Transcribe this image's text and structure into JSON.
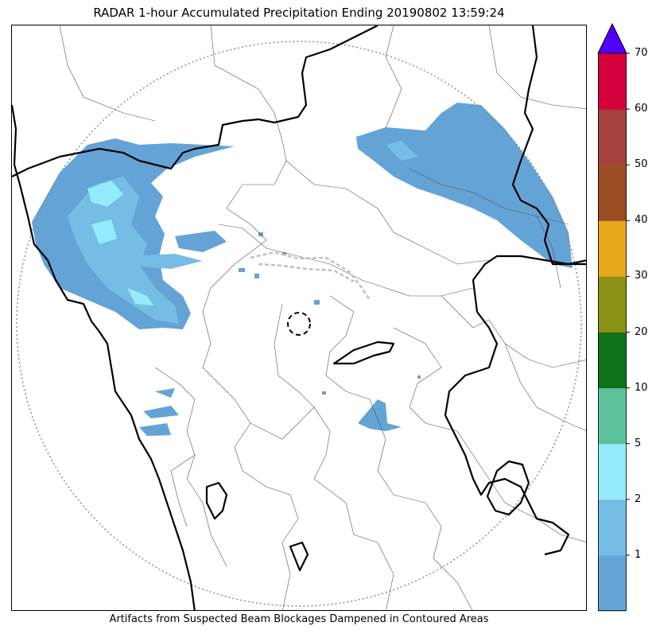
{
  "title": "RADAR 1-hour Accumulated Precipitation Ending 20190802 13:59:24",
  "footer_note": "Artifacts from Suspected Beam Blockages Dampened in Contoured Areas",
  "colorbar": {
    "tick_labels": [
      "1",
      "2",
      "5",
      "10",
      "20",
      "30",
      "40",
      "50",
      "60",
      "70"
    ],
    "colors": [
      "#64a3d6",
      "#76bde4",
      "#95ebfd",
      "#5dc29a",
      "#0f7219",
      "#8c9118",
      "#e7a81b",
      "#9b4d24",
      "#a4433e",
      "#d5003c"
    ],
    "extend_color": "#4f00ff"
  },
  "map_colors": {
    "radar_range_ring": "#888888",
    "state_border": "#000000",
    "district_border": "#555555",
    "blockage_contour": "#c0c0c0"
  }
}
